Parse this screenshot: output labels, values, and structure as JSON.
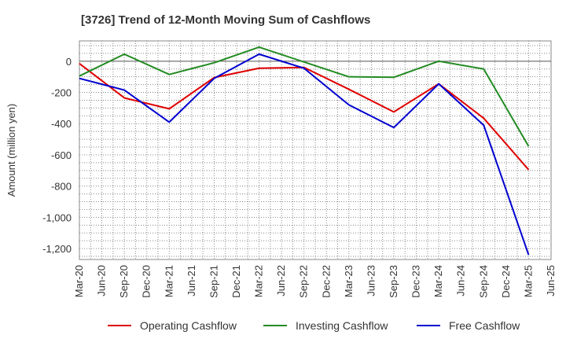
{
  "chart_data": {
    "type": "line",
    "title": "[3726]  Trend of 12-Month Moving Sum of Cashflows",
    "xlabel": "",
    "ylabel": "Amount (million yen)",
    "x": [
      "Mar-20",
      "Jun-20",
      "Sep-20",
      "Dec-20",
      "Mar-21",
      "Jun-21",
      "Sep-21",
      "Dec-21",
      "Mar-22",
      "Jun-22",
      "Sep-22",
      "Dec-22",
      "Mar-23",
      "Jun-23",
      "Sep-23",
      "Dec-23",
      "Mar-24",
      "Jun-24",
      "Sep-24",
      "Dec-24",
      "Mar-25",
      "Jun-25"
    ],
    "yticks": [
      0,
      -200,
      -400,
      -600,
      -800,
      -1000,
      -1200
    ],
    "ytick_labels": [
      "0",
      "-200",
      "-400",
      "-600",
      "-800",
      "-1,000",
      "-1,200"
    ],
    "ylim": [
      -1270,
      130
    ],
    "grid": true,
    "legend_position": "bottom",
    "series": [
      {
        "name": "Operating Cashflow",
        "color": "#e00000",
        "values": [
          -15,
          null,
          -235,
          null,
          -305,
          null,
          -105,
          null,
          -45,
          null,
          -40,
          null,
          -180,
          null,
          -325,
          null,
          -145,
          null,
          -365,
          null,
          -695,
          null
        ]
      },
      {
        "name": "Investing Cashflow",
        "color": "#228b22",
        "values": [
          -95,
          null,
          45,
          null,
          -85,
          null,
          -10,
          null,
          90,
          null,
          -5,
          null,
          -100,
          null,
          -103,
          null,
          0,
          null,
          -50,
          null,
          -545,
          null
        ]
      },
      {
        "name": "Free Cashflow",
        "color": "#0000d0",
        "values": [
          -110,
          null,
          -185,
          null,
          -390,
          null,
          -110,
          null,
          45,
          null,
          -45,
          null,
          -280,
          null,
          -425,
          null,
          -145,
          null,
          -410,
          null,
          -1240,
          null
        ]
      }
    ]
  }
}
